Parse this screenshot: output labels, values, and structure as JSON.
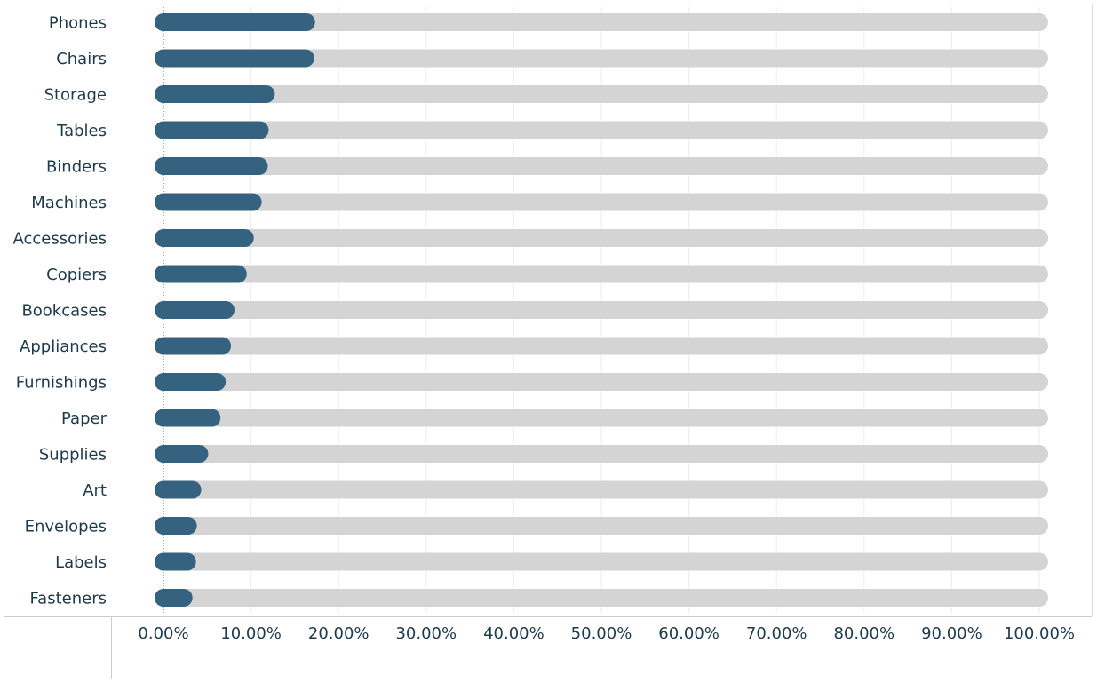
{
  "chart_data": {
    "type": "bar",
    "orientation": "horizontal",
    "title": "",
    "xlabel": "",
    "ylabel": "",
    "xlim": [
      0,
      100
    ],
    "grid": true,
    "legend": "none",
    "categories": [
      "Phones",
      "Chairs",
      "Storage",
      "Tables",
      "Binders",
      "Machines",
      "Accessories",
      "Copiers",
      "Bookcases",
      "Appliances",
      "Furnishings",
      "Paper",
      "Supplies",
      "Art",
      "Envelopes",
      "Labels",
      "Fasteners"
    ],
    "values": [
      16.3,
      16.2,
      11.7,
      11.0,
      10.9,
      10.2,
      9.3,
      8.5,
      7.1,
      6.7,
      6.1,
      5.5,
      4.1,
      3.3,
      2.8,
      2.7,
      2.3
    ],
    "background_value": 100,
    "ticks": [
      "0.00%",
      "10.00%",
      "20.00%",
      "30.00%",
      "40.00%",
      "50.00%",
      "60.00%",
      "70.00%",
      "80.00%",
      "90.00%",
      "100.00%"
    ],
    "colors": {
      "bar": "#35637f",
      "track": "#d4d4d4",
      "label": "#1e3a4c",
      "grid": "#ededed",
      "axis": "#cccccc"
    }
  }
}
